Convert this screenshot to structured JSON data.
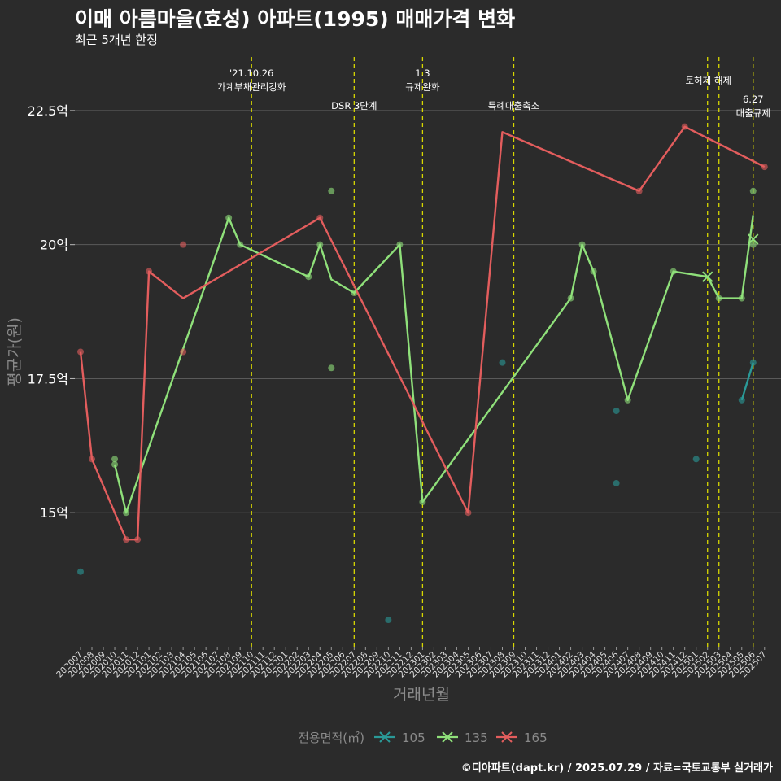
{
  "header": {
    "title": "이매 아름마을(효성) 아파트(1995) 매매가격 변화",
    "subtitle": "최근 5개년 한정"
  },
  "caption": "©디아파트(dapt.kr) / 2025.07.29 / 자료=국토교통부 실거래가",
  "colors": {
    "background": "#2b2b2b",
    "grid": "#5a5a5a",
    "event_line": "#d8d800",
    "series_105": "#2a9a98",
    "series_135": "#8fe07a",
    "series_165": "#e35d5d"
  },
  "chart_data": {
    "type": "line",
    "xlabel": "거래년월",
    "ylabel": "평균가(원)",
    "ylim": [
      12.5,
      23.5
    ],
    "yticks": [
      {
        "value": 15,
        "label": "15억"
      },
      {
        "value": 17.5,
        "label": "17.5억"
      },
      {
        "value": 20,
        "label": "20억"
      },
      {
        "value": 22.5,
        "label": "22.5억"
      }
    ],
    "months": [
      "202007",
      "202008",
      "202009",
      "202010",
      "202011",
      "202012",
      "202101",
      "202102",
      "202103",
      "202104",
      "202105",
      "202106",
      "202107",
      "202108",
      "202109",
      "202110",
      "202111",
      "202112",
      "202201",
      "202202",
      "202203",
      "202204",
      "202205",
      "202206",
      "202207",
      "202208",
      "202209",
      "202210",
      "202211",
      "202212",
      "202301",
      "202302",
      "202303",
      "202304",
      "202305",
      "202306",
      "202307",
      "202308",
      "202309",
      "202310",
      "202311",
      "202312",
      "202401",
      "202402",
      "202403",
      "202404",
      "202405",
      "202406",
      "202407",
      "202408",
      "202409",
      "202410",
      "202411",
      "202412",
      "202501",
      "202502",
      "202503",
      "202504",
      "202505",
      "202506",
      "202507"
    ],
    "legend": {
      "title": "전용면적(㎡)",
      "entries": [
        "105",
        "135",
        "165"
      ],
      "placement": "bottom"
    },
    "events": [
      {
        "month": "202110",
        "label1": "'21.10.26",
        "label2": "가계부채관리강화"
      },
      {
        "month": "202207",
        "label1": "",
        "label2": "DSR 3단계"
      },
      {
        "month": "202301",
        "label1": "1.3",
        "label2": "규제완화"
      },
      {
        "month": "202309",
        "label1": "",
        "label2": "특례대출축소"
      },
      {
        "month": "202502",
        "label1": "",
        "label2": "토허제 해제"
      },
      {
        "month": "202503",
        "label1": "",
        "label2": ""
      },
      {
        "month": "202506",
        "label1": "6.27",
        "label2": "대출규제"
      }
    ],
    "series": [
      {
        "name": "105",
        "line": [
          [
            "202505",
            17.1
          ],
          [
            "202506",
            17.8
          ]
        ],
        "points": [
          [
            "202007",
            13.9
          ],
          [
            "202210",
            13.0
          ],
          [
            "202308",
            17.8
          ],
          [
            "202406",
            16.9
          ],
          [
            "202406",
            15.55
          ],
          [
            "202501",
            16.0
          ],
          [
            "202505",
            17.1
          ],
          [
            "202506",
            17.8
          ]
        ],
        "cross": []
      },
      {
        "name": "135",
        "line": [
          [
            "202010",
            15.9
          ],
          [
            "202011",
            15.0
          ],
          [
            "202108",
            20.5
          ],
          [
            "202109",
            20.0
          ],
          [
            "202203",
            19.4
          ],
          [
            "202204",
            20.0
          ],
          [
            "202205",
            19.35
          ],
          [
            "202207",
            19.1
          ],
          [
            "202211",
            20.0
          ],
          [
            "202301",
            15.2
          ],
          [
            "202402",
            19.0
          ],
          [
            "202403",
            20.0
          ],
          [
            "202404",
            19.5
          ],
          [
            "202407",
            17.1
          ],
          [
            "202411",
            19.5
          ],
          [
            "202502",
            19.4
          ],
          [
            "202503",
            19.0
          ],
          [
            "202505",
            19.0
          ],
          [
            "202506",
            20.55
          ]
        ],
        "points": [
          [
            "202010",
            16.0
          ],
          [
            "202010",
            15.9
          ],
          [
            "202011",
            15.0
          ],
          [
            "202108",
            20.5
          ],
          [
            "202109",
            20.0
          ],
          [
            "202203",
            19.4
          ],
          [
            "202204",
            20.0
          ],
          [
            "202205",
            21.0
          ],
          [
            "202205",
            17.7
          ],
          [
            "202207",
            19.1
          ],
          [
            "202211",
            20.0
          ],
          [
            "202301",
            15.2
          ],
          [
            "202402",
            19.0
          ],
          [
            "202403",
            20.0
          ],
          [
            "202404",
            19.5
          ],
          [
            "202407",
            17.1
          ],
          [
            "202411",
            19.5
          ],
          [
            "202503",
            19.0
          ],
          [
            "202505",
            19.0
          ],
          [
            "202506",
            21.0
          ],
          [
            "202506",
            20.0
          ]
        ],
        "cross": [
          [
            "202502",
            19.4
          ],
          [
            "202506",
            20.1
          ]
        ]
      },
      {
        "name": "165",
        "line": [
          [
            "202007",
            18.0
          ],
          [
            "202008",
            16.0
          ],
          [
            "202011",
            14.5
          ],
          [
            "202012",
            14.5
          ],
          [
            "202101",
            19.5
          ],
          [
            "202104",
            19.0
          ],
          [
            "202204",
            20.5
          ],
          [
            "202305",
            15.0
          ],
          [
            "202308",
            22.1
          ],
          [
            "202408",
            21.0
          ],
          [
            "202412",
            22.2
          ],
          [
            "202507",
            21.45
          ]
        ],
        "points": [
          [
            "202007",
            18.0
          ],
          [
            "202008",
            16.0
          ],
          [
            "202011",
            14.5
          ],
          [
            "202012",
            14.5
          ],
          [
            "202101",
            19.5
          ],
          [
            "202104",
            20.0
          ],
          [
            "202104",
            18.0
          ],
          [
            "202204",
            20.5
          ],
          [
            "202305",
            15.0
          ],
          [
            "202408",
            21.0
          ],
          [
            "202412",
            22.2
          ],
          [
            "202507",
            21.45
          ]
        ],
        "cross": []
      }
    ]
  }
}
